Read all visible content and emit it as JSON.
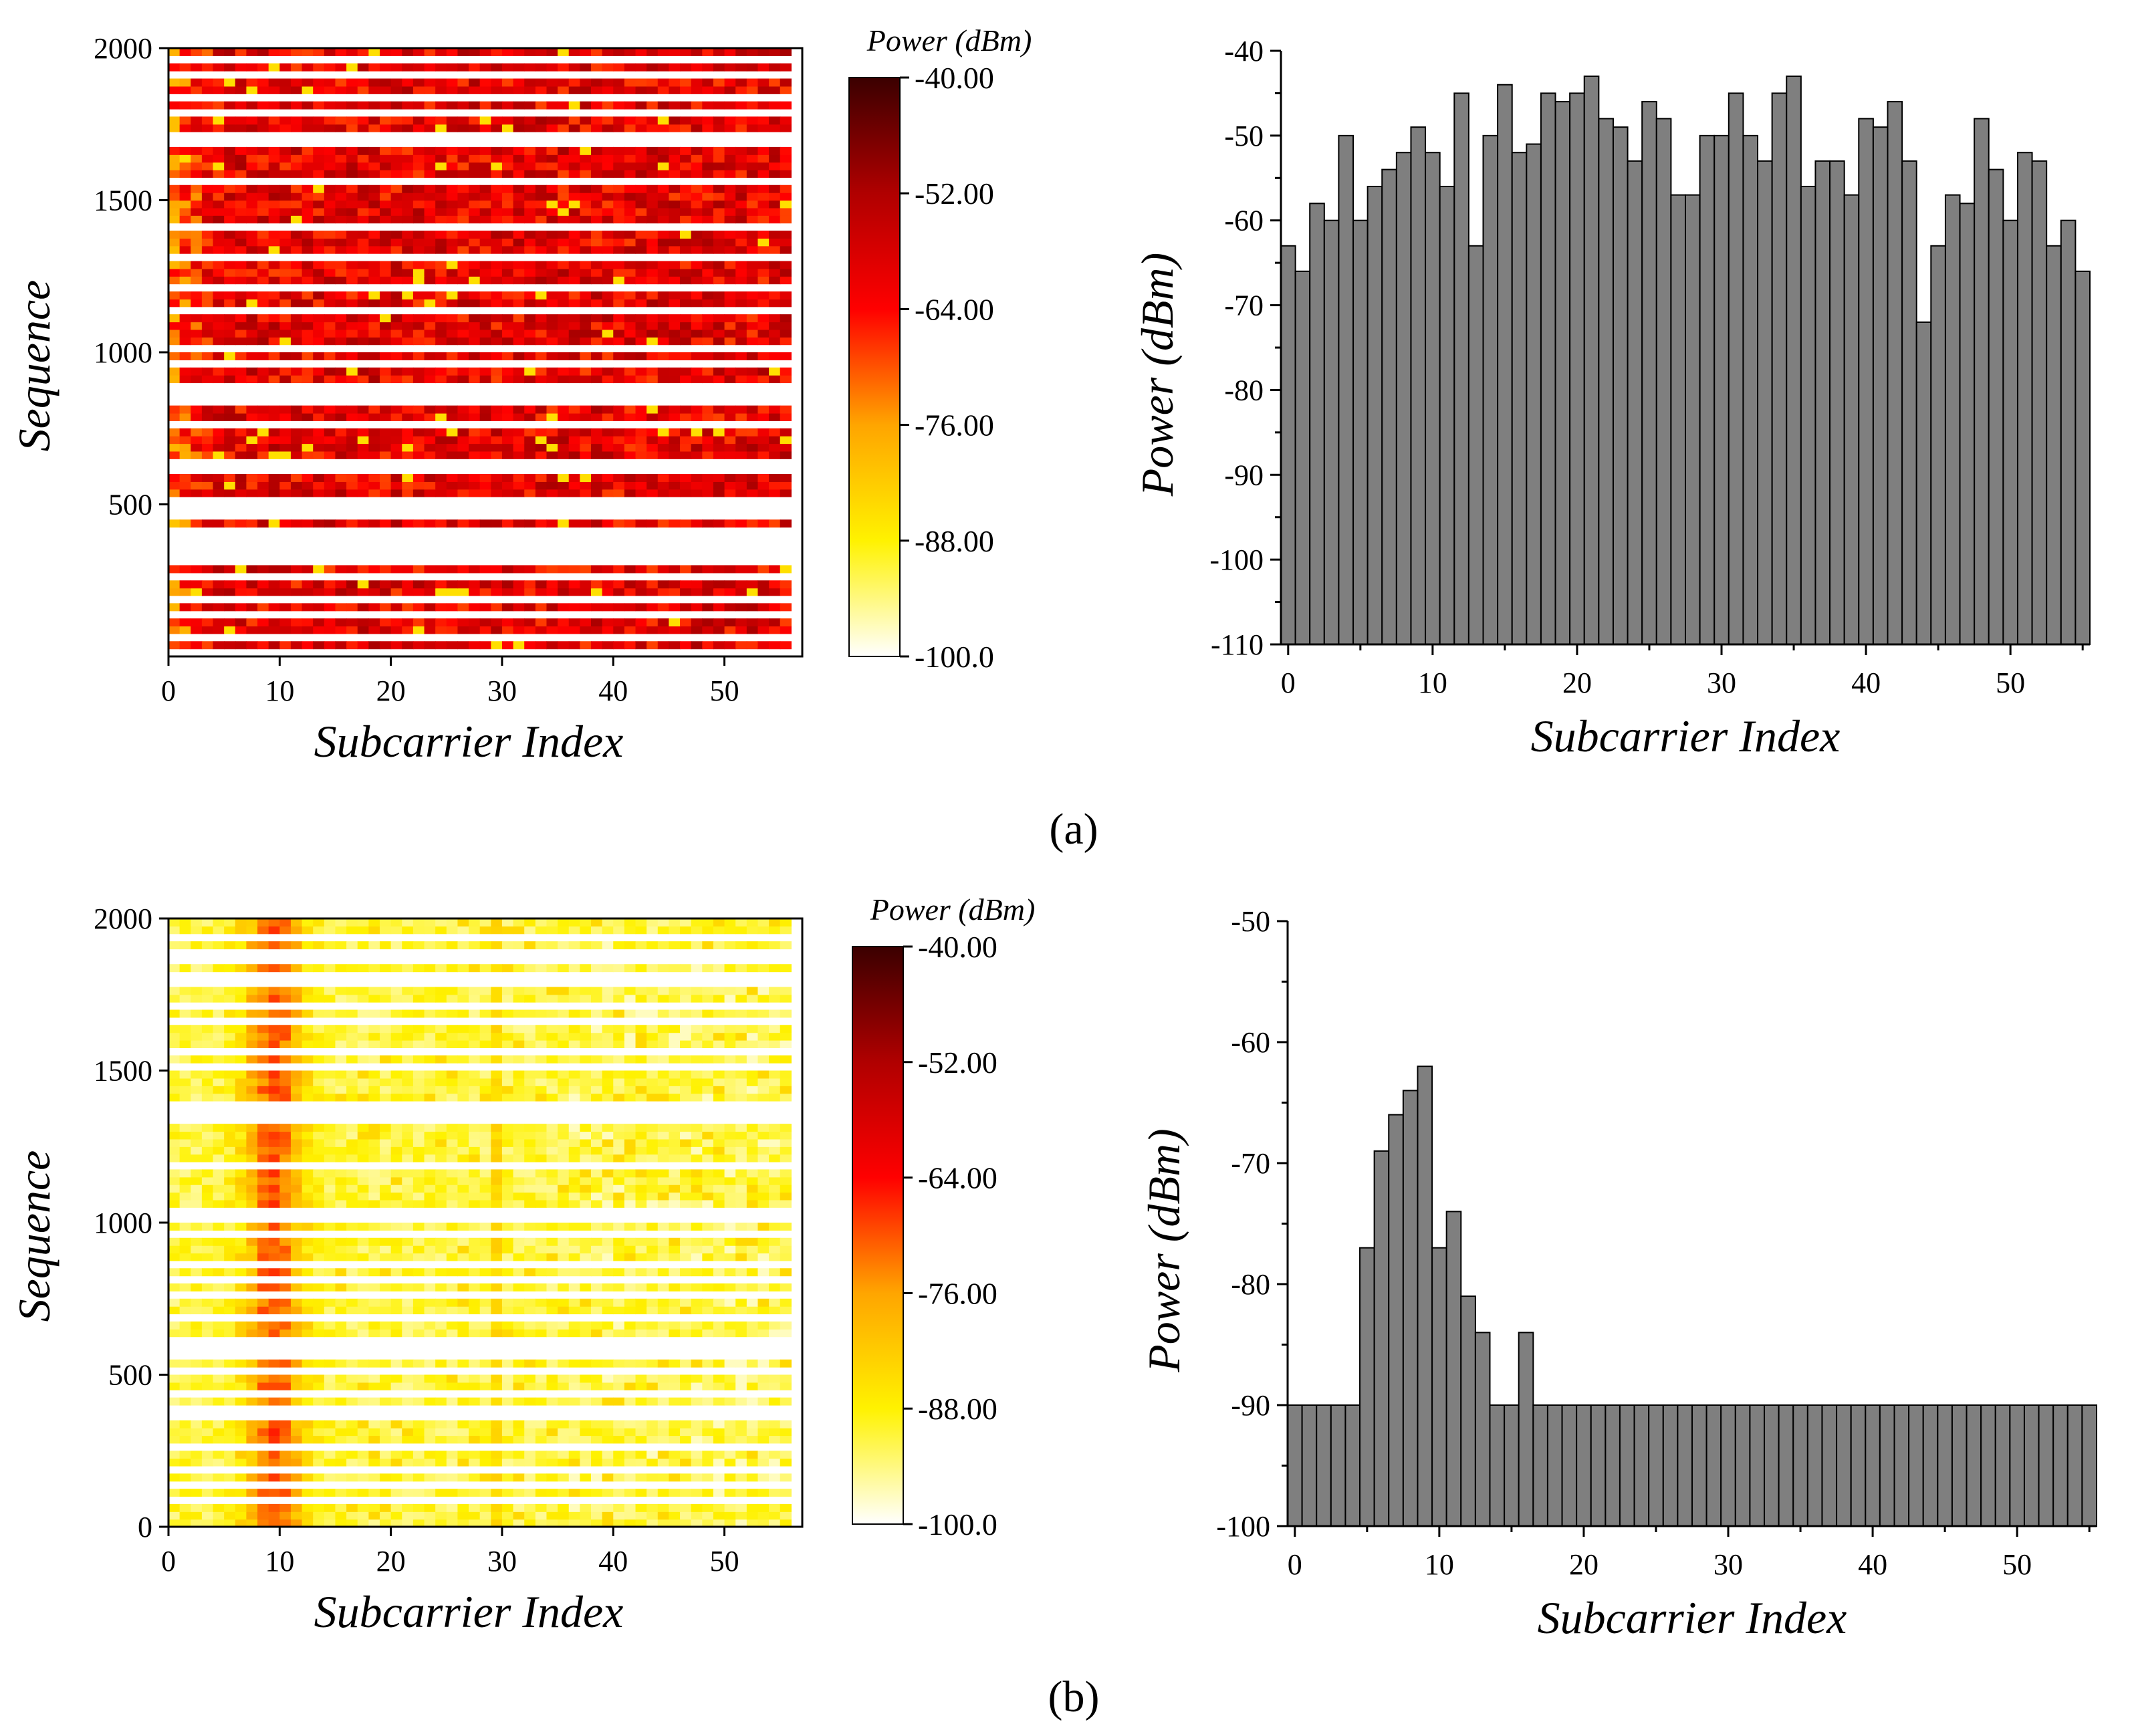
{
  "colors": {
    "bar_fill": "#7f7f7f",
    "bar_stroke": "#000000",
    "colormap": [
      "#ffffff",
      "#fff200",
      "#ffa500",
      "#ff0000",
      "#b00000",
      "#3b0000"
    ]
  },
  "captions": {
    "a": "(a)",
    "b": "(b)"
  },
  "chart_data": [
    {
      "id": "a-heatmap",
      "type": "heatmap",
      "panel": "a",
      "xlabel": "Subcarrier Index",
      "ylabel": "Sequence",
      "xlim": [
        0,
        57
      ],
      "ylim": [
        0,
        2000
      ],
      "xticks": [
        "0",
        "10",
        "20",
        "30",
        "40",
        "50"
      ],
      "yticks": [
        "500",
        "1000",
        "1500",
        "2000"
      ],
      "cells_x": 56,
      "cells_y": 80,
      "colorbar": {
        "title": "Power (dBm)",
        "range": [
          -100,
          -40
        ],
        "labels": [
          "-40.00",
          "-52.00",
          "-64.00",
          "-76.00",
          "-88.00",
          "-100.0"
        ]
      },
      "blank_rows": [
        0,
        2,
        5,
        7,
        10,
        12,
        13,
        14,
        15,
        16,
        18,
        19,
        20,
        24,
        25,
        30,
        33,
        34,
        35,
        38,
        40,
        45,
        48,
        52,
        56,
        62,
        67,
        68,
        71,
        73,
        76,
        78
      ],
      "profile": "uniform",
      "base_dbm": -60,
      "spread_dbm": 9
    },
    {
      "id": "a-bars",
      "type": "bar",
      "panel": "a",
      "xlabel": "Subcarrier Index",
      "ylabel": "Power (dBm)",
      "xlim": [
        -0.5,
        55.5
      ],
      "ylim": [
        -110,
        -40
      ],
      "xticks": [
        "0",
        "10",
        "20",
        "30",
        "40",
        "50"
      ],
      "yticks": [
        "-40",
        "-50",
        "-60",
        "-70",
        "-80",
        "-90",
        "-100",
        "-110"
      ],
      "values": [
        -63,
        -66,
        -58,
        -60,
        -50,
        -60,
        -56,
        -54,
        -52,
        -49,
        -52,
        -56,
        -45,
        -63,
        -50,
        -44,
        -52,
        -51,
        -45,
        -46,
        -45,
        -43,
        -48,
        -49,
        -53,
        -46,
        -48,
        -57,
        -57,
        -50,
        -50,
        -45,
        -50,
        -53,
        -45,
        -43,
        -56,
        -53,
        -53,
        -57,
        -48,
        -49,
        -46,
        -53,
        -72,
        -63,
        -57,
        -58,
        -48,
        -54,
        -60,
        -52,
        -53,
        -63,
        -60,
        -66
      ]
    },
    {
      "id": "b-heatmap",
      "type": "heatmap",
      "panel": "b",
      "xlabel": "Subcarrier Index",
      "ylabel": "Sequence",
      "xlim": [
        0,
        57
      ],
      "ylim": [
        0,
        2000
      ],
      "xticks": [
        "0",
        "10",
        "20",
        "30",
        "40",
        "50"
      ],
      "yticks": [
        "0",
        "500",
        "1000",
        "1500",
        "2000"
      ],
      "cells_x": 56,
      "cells_y": 80,
      "colorbar": {
        "title": "Power (dBm)",
        "range": [
          -100,
          -40
        ],
        "labels": [
          "-40.00",
          "-52.00",
          "-64.00",
          "-76.00",
          "-88.00",
          "-100.0"
        ]
      },
      "blank_rows": [
        3,
        5,
        7,
        10,
        14,
        15,
        17,
        20,
        22,
        23,
        24,
        27,
        30,
        32,
        34,
        38,
        40,
        41,
        47,
        53,
        54,
        55,
        60,
        62,
        66,
        68,
        71,
        72,
        74,
        75,
        77
      ],
      "profile": "peaked",
      "peak_center": 9,
      "peak_width": 2.6,
      "peak_dbm": -70,
      "floor_dbm": -91,
      "secondary_column": 29,
      "secondary_dbm": -84
    },
    {
      "id": "b-bars",
      "type": "bar",
      "panel": "b",
      "xlabel": "Subcarrier Index",
      "ylabel": "Power (dBm)",
      "xlim": [
        -0.5,
        55.5
      ],
      "ylim": [
        -100,
        -50
      ],
      "xticks": [
        "0",
        "10",
        "20",
        "30",
        "40",
        "50"
      ],
      "yticks": [
        "-50",
        "-60",
        "-70",
        "-80",
        "-90",
        "-100"
      ],
      "values": [
        -90,
        -90,
        -90,
        -90,
        -90,
        -77,
        -69,
        -66,
        -64,
        -62,
        -77,
        -74,
        -81,
        -84,
        -90,
        -90,
        -84,
        -90,
        -90,
        -90,
        -90,
        -90,
        -90,
        -90,
        -90,
        -90,
        -90,
        -90,
        -90,
        -90,
        -90,
        -90,
        -90,
        -90,
        -90,
        -90,
        -90,
        -90,
        -90,
        -90,
        -90,
        -90,
        -90,
        -90,
        -90,
        -90,
        -90,
        -90,
        -90,
        -90,
        -90,
        -90,
        -90,
        -90,
        -90,
        -90
      ]
    }
  ]
}
